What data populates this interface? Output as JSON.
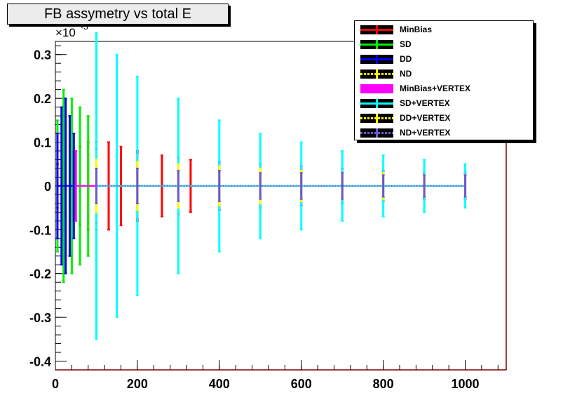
{
  "chart_data": {
    "type": "scatter",
    "title": "FB assymetry vs total E",
    "xlabel": "",
    "ylabel": "",
    "y_multiplier_label": "×10",
    "y_multiplier_exponent": "-3",
    "xlim": [
      0,
      1100
    ],
    "ylim": [
      -0.42,
      0.33
    ],
    "x_ticks": [
      0,
      200,
      400,
      600,
      800,
      1000
    ],
    "y_ticks": [
      -0.4,
      -0.3,
      -0.2,
      -0.1,
      0,
      0.1,
      0.2,
      0.3
    ],
    "x_tick_labels": [
      "0",
      "200",
      "400",
      "600",
      "800",
      "1000"
    ],
    "y_tick_labels": [
      "-0.4",
      "-0.3",
      "-0.2",
      "-0.1",
      "0",
      "0.1",
      "0.2",
      "0.3"
    ],
    "grid": false,
    "legend_position": "top-right",
    "series": [
      {
        "name": "MinBias",
        "color": "#ff0000",
        "line_style": "solid",
        "x": [
          5,
          20,
          40,
          60,
          80,
          100,
          130,
          160,
          200,
          260,
          330
        ],
        "y": [
          0,
          0,
          0,
          0,
          0,
          0,
          0,
          0,
          0,
          0,
          0
        ],
        "err": [
          0.05,
          0.06,
          0.08,
          0.09,
          0.1,
          0.1,
          0.1,
          0.09,
          0.08,
          0.07,
          0.06
        ]
      },
      {
        "name": "SD",
        "color": "#00ee00",
        "line_style": "solid",
        "x": [
          5,
          20,
          40,
          60,
          80
        ],
        "y": [
          0,
          0,
          0,
          0,
          0
        ],
        "err": [
          0.15,
          0.22,
          0.2,
          0.18,
          0.16
        ]
      },
      {
        "name": "DD",
        "color": "#0000ee",
        "line_style": "solid",
        "x": [
          5,
          15,
          25,
          35,
          45
        ],
        "y": [
          0,
          0,
          0,
          0,
          0
        ],
        "err": [
          0.12,
          0.18,
          0.2,
          0.16,
          0.12
        ]
      },
      {
        "name": "ND",
        "color": "#ffff00",
        "line_style": "dotted",
        "x": [
          100,
          200,
          300,
          400,
          500,
          600,
          700,
          800,
          900,
          1000
        ],
        "y": [
          0,
          0,
          0,
          0,
          0,
          0,
          0,
          0,
          0,
          0
        ],
        "err": [
          0.07,
          0.065,
          0.06,
          0.05,
          0.045,
          0.04,
          0.035,
          0.03,
          0.03,
          0.03
        ]
      },
      {
        "name": "MinBias+VERTEX",
        "color": "#ff00ff",
        "line_style": "solid",
        "x": [
          50,
          100,
          200,
          300,
          400,
          500,
          600,
          700,
          800,
          900,
          1000
        ],
        "y": [
          0,
          0,
          0,
          0,
          0,
          0,
          0,
          0,
          0,
          0,
          0
        ],
        "err": [
          0.08,
          0.085,
          0.075,
          0.065,
          0.055,
          0.05,
          0.045,
          0.04,
          0.035,
          0.03,
          0.03
        ]
      },
      {
        "name": "SD+VERTEX",
        "color": "#00ffff",
        "line_style": "solid",
        "x": [
          100,
          150,
          200,
          300,
          400,
          500,
          600,
          700,
          800,
          900,
          1000
        ],
        "y": [
          0,
          0,
          0,
          0,
          0,
          0,
          0,
          0,
          0,
          0,
          0
        ],
        "err": [
          0.35,
          0.3,
          0.25,
          0.2,
          0.15,
          0.12,
          0.1,
          0.08,
          0.07,
          0.06,
          0.05
        ]
      },
      {
        "name": "DD+VERTEX",
        "color": "#ffff00",
        "line_style": "dotted",
        "x": [
          100,
          200,
          300,
          400,
          500,
          600,
          700,
          800,
          900,
          1000
        ],
        "y": [
          0,
          0,
          0,
          0,
          0,
          0,
          0,
          0,
          0,
          0
        ],
        "err": [
          0.06,
          0.055,
          0.05,
          0.045,
          0.04,
          0.035,
          0.03,
          0.03,
          0.025,
          0.025
        ]
      },
      {
        "name": "ND+VERTEX",
        "color": "#6a5acd",
        "line_style": "dotted",
        "x": [
          100,
          200,
          300,
          400,
          500,
          600,
          700,
          800,
          900,
          1000
        ],
        "y": [
          0,
          0,
          0,
          0,
          0,
          0,
          0,
          0,
          0,
          0
        ],
        "err": [
          0.04,
          0.04,
          0.035,
          0.035,
          0.03,
          0.03,
          0.03,
          0.025,
          0.025,
          0.025
        ]
      }
    ]
  }
}
